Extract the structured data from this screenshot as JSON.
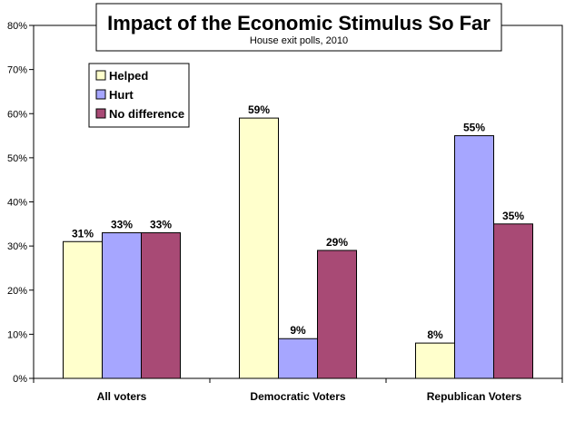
{
  "chart_data": {
    "type": "bar",
    "title": "Impact of the Economic Stimulus So Far",
    "subtitle": "House exit polls, 2010",
    "categories": [
      "All voters",
      "Democratic Voters",
      "Republican Voters"
    ],
    "series": [
      {
        "name": "Helped",
        "values": [
          31,
          59,
          8
        ],
        "color": "#FFFFCC"
      },
      {
        "name": "Hurt",
        "values": [
          33,
          9,
          55
        ],
        "color": "#A6A6FF"
      },
      {
        "name": "No difference",
        "values": [
          33,
          29,
          35
        ],
        "color": "#A84A75"
      }
    ],
    "data_labels": [
      [
        "31%",
        "33%",
        "33%"
      ],
      [
        "59%",
        "9%",
        "29%"
      ],
      [
        "8%",
        "55%",
        "35%"
      ]
    ],
    "y_ticks": [
      "0%",
      "10%",
      "20%",
      "30%",
      "40%",
      "50%",
      "60%",
      "70%",
      "80%"
    ],
    "ylim": [
      0,
      80
    ],
    "xlabel": "",
    "ylabel": "",
    "grid": false,
    "legend_position": "top-left"
  }
}
